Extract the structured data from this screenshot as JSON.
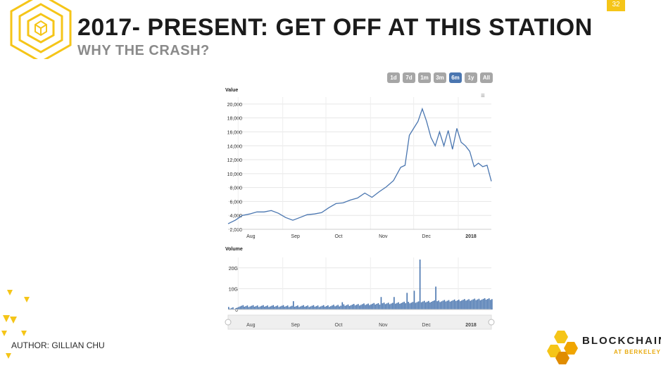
{
  "slide": {
    "title": "2017- PRESENT: GET OFF AT THIS STATION",
    "subtitle": "WHY THE CRASH?",
    "page_number": "32",
    "author": "AUTHOR: GILLIAN CHU",
    "brand_name": "BLOCKCHAIN",
    "brand_sub": "AT BERKELEY",
    "accent_color": "#f5c518"
  },
  "range_buttons": [
    {
      "label": "1d",
      "active": false
    },
    {
      "label": "7d",
      "active": false
    },
    {
      "label": "1m",
      "active": false
    },
    {
      "label": "3m",
      "active": false
    },
    {
      "label": "6m",
      "active": true
    },
    {
      "label": "1y",
      "active": false
    },
    {
      "label": "All",
      "active": false
    }
  ],
  "chart_data": [
    {
      "type": "line",
      "ylabel": "Value",
      "ylim": [
        2000,
        21000
      ],
      "yticks": [
        "2,000",
        "4,000",
        "6,000",
        "8,000",
        "10,000",
        "12,000",
        "14,000",
        "16,000",
        "18,000",
        "20,000"
      ],
      "yticks_values": [
        2000,
        4000,
        6000,
        8000,
        10000,
        12000,
        14000,
        16000,
        18000,
        20000
      ],
      "xticks": [
        "Aug",
        "Sep",
        "Oct",
        "Nov",
        "Dec",
        "2018"
      ],
      "xticks_days": [
        0,
        31,
        61,
        92,
        122,
        153
      ],
      "line_color": "#4a76b0",
      "series": [
        {
          "x_days": [
            -7,
            -2,
            3,
            8,
            13,
            18,
            23,
            28,
            33,
            38,
            43,
            48,
            53,
            58,
            63,
            68,
            73,
            78,
            83,
            88,
            93,
            98,
            103,
            108,
            113,
            116,
            119,
            122,
            125,
            128,
            131,
            134,
            137,
            140,
            143,
            146,
            149,
            152,
            155,
            158,
            161,
            164,
            167,
            170,
            173,
            176
          ],
          "values": [
            2800,
            3300,
            4000,
            4200,
            4500,
            4500,
            4700,
            4300,
            3700,
            3300,
            3700,
            4100,
            4200,
            4400,
            5100,
            5700,
            5800,
            6200,
            6500,
            7200,
            6600,
            7400,
            8100,
            9000,
            10900,
            11200,
            15500,
            16500,
            17500,
            19300,
            17500,
            15200,
            14000,
            16000,
            14000,
            16200,
            13500,
            16500,
            14500,
            14000,
            13200,
            11000,
            11500,
            11000,
            11200,
            8900
          ]
        }
      ]
    },
    {
      "type": "bar",
      "ylabel": "Volume",
      "ylim": [
        0,
        25
      ],
      "yticks": [
        "0",
        "10G",
        "20G"
      ],
      "yticks_values": [
        0,
        10,
        20
      ],
      "xticks": [
        "Aug",
        "Sep",
        "Oct",
        "Nov",
        "Dec",
        "2018"
      ],
      "xticks_days": [
        0,
        31,
        61,
        92,
        122,
        153
      ],
      "bar_color": "#4a76b0",
      "volume_unit": "G",
      "spike_days": [
        38,
        72,
        99,
        108,
        117,
        122,
        126,
        137
      ],
      "spike_values": [
        4.0,
        3.5,
        6.0,
        6.0,
        8.0,
        9.0,
        24.0,
        11.0
      ]
    }
  ],
  "navigator": {
    "xticks": [
      "Aug",
      "Sep",
      "Oct",
      "Nov",
      "Dec",
      "2018"
    ]
  }
}
